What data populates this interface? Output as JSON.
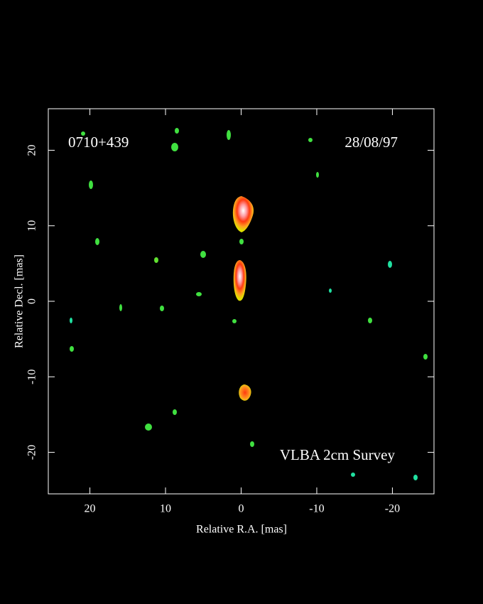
{
  "chart_data": {
    "type": "image",
    "annotations": [
      "0710+439",
      "28/08/97",
      "VLBA 2cm Survey"
    ],
    "x_label": "Relative R.A. [mas]",
    "y_label": "Relative Decl. [mas]",
    "xlim": [
      25.5,
      -25.5
    ],
    "ylim": [
      -25.5,
      25.5
    ],
    "xticks": [
      20,
      10,
      0,
      -10,
      -20
    ],
    "yticks": [
      -20,
      -10,
      0,
      10,
      20
    ]
  }
}
